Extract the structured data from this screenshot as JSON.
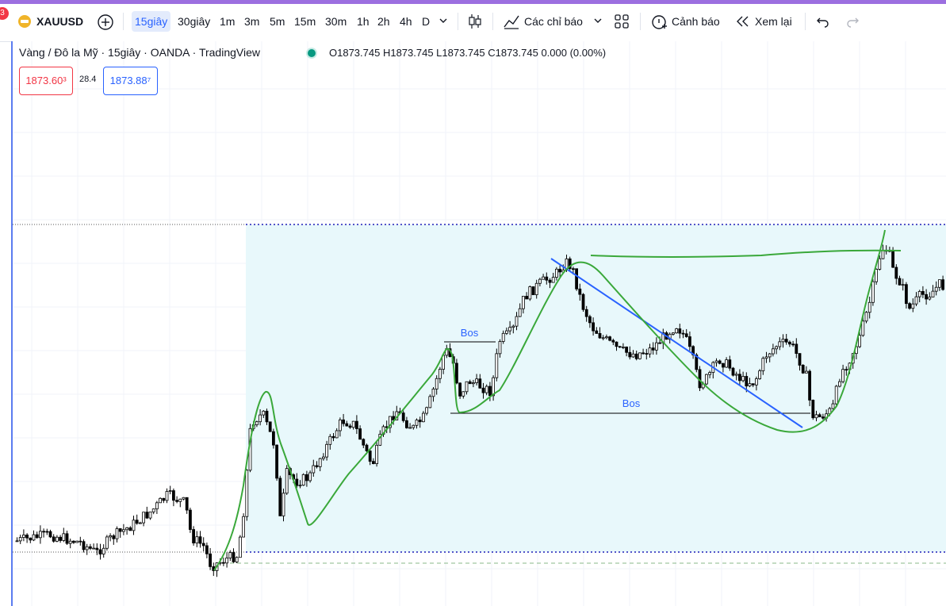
{
  "toolbar": {
    "notification_count": "3",
    "symbol": "XAUUSD",
    "intervals": [
      "15giây",
      "30giây",
      "1m",
      "3m",
      "5m",
      "15m",
      "30m",
      "1h",
      "2h",
      "4h",
      "D"
    ],
    "active_interval": "15giây",
    "indicators_label": "Các chỉ báo",
    "alert_label": "Cảnh báo",
    "replay_label": "Xem lại"
  },
  "legend": {
    "title": "Vàng / Đô la Mỹ · 15giây · OANDA · TradingView",
    "ohlc": "O1873.745  H1873.745  L1873.745  C1873.745  0.000 (0.00%)"
  },
  "trade": {
    "sell_price": "1873.60³",
    "spread": "28.4",
    "buy_price": "1873.88⁷"
  },
  "annotations": {
    "bos_upper": "Bos",
    "bos_lower": "Bos"
  },
  "colors": {
    "accent": "#2962ff",
    "bull": "#000000",
    "bear": "#000000",
    "zone_fill": "#e8f8fb",
    "zone_border": "#1f1fb8",
    "trend_line": "#2962ff",
    "drawing": "#3aa83a"
  },
  "chart_data": {
    "type": "candlestick",
    "title": "Vàng / Đô la Mỹ · 15giây · OANDA · TradingView",
    "series": [
      {
        "name": "XAUUSD",
        "ohlc_last": {
          "open": 1873.745,
          "high": 1873.745,
          "low": 1873.745,
          "close": 1873.745
        }
      }
    ]
  }
}
